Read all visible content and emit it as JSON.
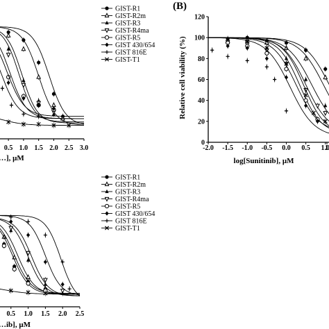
{
  "panels": [
    {
      "id": "A",
      "letter": "",
      "xlabel": "…], μM",
      "ylabel": "",
      "xlim": [
        -0.1,
        3.0
      ],
      "ylim": [
        0,
        120
      ],
      "x_ticks": [
        "0.5",
        "1.0",
        "1.5",
        "2.0",
        "2.5",
        "3.0"
      ],
      "y_ticks": [],
      "legend": [
        "GIST-R1",
        "GIST-R2m",
        "GIST-R3",
        "GIST-R4ma",
        "GIST-R5",
        "GIST 430/654",
        "GIST 816E",
        "GIST-T1"
      ]
    },
    {
      "id": "B",
      "letter": "(B)",
      "xlabel": "log[Sunitinib], μM",
      "ylabel": "Relative cell viability (%)",
      "xlim": [
        -2.0,
        1.2
      ],
      "ylim": [
        0,
        120
      ],
      "x_ticks": [
        "-2.0",
        "-1.5",
        "-1.0",
        "-0.5",
        "0.0",
        "0.5",
        "1.0",
        "1."
      ],
      "y_ticks": [
        "0",
        "20",
        "40",
        "60",
        "80",
        "100",
        "120"
      ],
      "legend": []
    },
    {
      "id": "C",
      "letter": "",
      "xlabel": "…ib], μM",
      "ylabel": "",
      "xlim": [
        -0.1,
        2.5
      ],
      "ylim": [
        0,
        120
      ],
      "x_ticks": [
        "0.5",
        "1.0",
        "1.5",
        "2.0",
        "2.5"
      ],
      "y_ticks": [],
      "legend": [
        "GIST-R1",
        "GIST-R2m",
        "GIST-R3",
        "GIST-R4ma",
        "GIST-R5",
        "GIST 430/654",
        "GIST 816E",
        "GIST-T1"
      ]
    }
  ],
  "chart_data": [
    {
      "type": "scatter",
      "title": "",
      "xlabel": "…], μM",
      "ylabel": "",
      "xlim": [
        -0.1,
        3.0
      ],
      "ylim": [
        0,
        120
      ],
      "grid": false,
      "legend_position": "right",
      "series": [
        {
          "name": "GIST-R1",
          "marker": "circle-filled",
          "x": [
            0.0,
            0.5,
            1.0,
            1.5,
            2.0,
            2.3
          ],
          "y": [
            97,
            95,
            88,
            68,
            40,
            20
          ],
          "curve": {
            "top": 100,
            "bottom": 12,
            "ec50": 1.85,
            "hill": 1.6
          }
        },
        {
          "name": "GIST-R2m",
          "marker": "triangle-open",
          "x": [
            0.0,
            0.5,
            1.0,
            1.5,
            2.0,
            2.3
          ],
          "y": [
            96,
            92,
            80,
            55,
            30,
            18
          ],
          "curve": {
            "top": 100,
            "bottom": 12,
            "ec50": 1.5,
            "hill": 1.6
          }
        },
        {
          "name": "GIST-R3",
          "marker": "triangle-filled",
          "x": [
            0.0,
            0.5,
            1.0,
            1.5,
            2.0
          ],
          "y": [
            95,
            80,
            52,
            34,
            22
          ],
          "curve": {
            "top": 100,
            "bottom": 14,
            "ec50": 0.95,
            "hill": 1.7
          }
        },
        {
          "name": "GIST-R4ma",
          "marker": "triangle-down-open",
          "x": [
            0.0,
            0.5,
            1.0,
            1.5,
            2.0
          ],
          "y": [
            94,
            75,
            48,
            32,
            24
          ],
          "curve": {
            "top": 100,
            "bottom": 15,
            "ec50": 0.85,
            "hill": 1.7
          }
        },
        {
          "name": "GIST-R5",
          "marker": "circle-open",
          "x": [
            0.0,
            0.5,
            1.0,
            1.5,
            2.0
          ],
          "y": [
            90,
            55,
            38,
            30,
            26
          ],
          "curve": {
            "top": 100,
            "bottom": 18,
            "ec50": 0.55,
            "hill": 1.6
          }
        },
        {
          "name": "GIST 430/654",
          "marker": "diamond-filled",
          "x": [
            0.0,
            0.5,
            1.0,
            1.5,
            2.0
          ],
          "y": [
            85,
            50,
            36,
            30,
            27
          ],
          "curve": {
            "top": 100,
            "bottom": 20,
            "ec50": 0.45,
            "hill": 1.5
          }
        },
        {
          "name": "GIST 816E",
          "marker": "plus",
          "x": [
            0.0,
            0.3,
            0.6,
            1.0,
            1.5
          ],
          "y": [
            70,
            45,
            30,
            22,
            20
          ],
          "curve": {
            "top": 100,
            "bottom": 18,
            "ec50": 0.25,
            "hill": 1.5
          }
        },
        {
          "name": "GIST-T1",
          "marker": "cross",
          "x": [
            0.0,
            0.5,
            1.0,
            1.5,
            2.0,
            2.5
          ],
          "y": [
            18,
            15,
            13,
            13,
            12,
            12
          ],
          "curve": {
            "top": 22,
            "bottom": 12,
            "ec50": 0.3,
            "hill": 1.2
          }
        }
      ]
    },
    {
      "type": "scatter",
      "title": "",
      "xlabel": "log[Sunitinib], μM",
      "ylabel": "Relative cell viability (%)",
      "xlim": [
        -2.0,
        1.2
      ],
      "ylim": [
        0,
        120
      ],
      "grid": false,
      "series": [
        {
          "name": "",
          "marker": "circle-filled",
          "x": [
            -1.5,
            -1.0,
            -0.5,
            0.0,
            0.5,
            1.0
          ],
          "y": [
            99,
            100,
            97,
            95,
            88,
            70
          ],
          "curve": {
            "top": 100,
            "bottom": 10,
            "ec50": 1.1,
            "hill": 1.4
          }
        },
        {
          "name": "",
          "marker": "triangle-open",
          "x": [
            -1.5,
            -1.0,
            -0.5,
            0.0,
            0.5,
            1.0
          ],
          "y": [
            97,
            98,
            95,
            90,
            80,
            62
          ],
          "curve": {
            "top": 100,
            "bottom": 10,
            "ec50": 0.95,
            "hill": 1.4
          }
        },
        {
          "name": "",
          "marker": "triangle-filled",
          "x": [
            -1.5,
            -1.0,
            -0.5,
            0.0,
            0.5,
            1.0
          ],
          "y": [
            98,
            96,
            90,
            80,
            60,
            35
          ],
          "curve": {
            "top": 100,
            "bottom": 10,
            "ec50": 0.65,
            "hill": 1.4
          }
        },
        {
          "name": "",
          "marker": "triangle-down-open",
          "x": [
            -1.5,
            -1.0,
            -0.5,
            0.0,
            0.5,
            0.8,
            1.0
          ],
          "y": [
            96,
            94,
            88,
            75,
            50,
            35,
            28
          ],
          "curve": {
            "top": 100,
            "bottom": 10,
            "ec50": 0.5,
            "hill": 1.5
          }
        },
        {
          "name": "",
          "marker": "circle-open",
          "x": [
            -1.5,
            -1.0,
            -0.5,
            0.0,
            0.5,
            0.8
          ],
          "y": [
            95,
            92,
            85,
            70,
            40,
            22
          ],
          "curve": {
            "top": 100,
            "bottom": 8,
            "ec50": 0.35,
            "hill": 1.6
          }
        },
        {
          "name": "",
          "marker": "diamond-filled",
          "x": [
            -1.5,
            -1.0,
            -0.5,
            0.0,
            0.5,
            0.8
          ],
          "y": [
            92,
            90,
            80,
            62,
            35,
            20
          ],
          "curve": {
            "top": 100,
            "bottom": 10,
            "ec50": 0.25,
            "hill": 1.5
          }
        },
        {
          "name": "",
          "marker": "plus",
          "x": [
            -1.9,
            -1.5,
            -1.0,
            -0.5,
            -0.3,
            0.0
          ],
          "y": [
            88,
            82,
            78,
            72,
            60,
            30
          ],
          "curve": {
            "top": 100,
            "bottom": 5,
            "ec50": 0.1,
            "hill": 1.4
          }
        },
        {
          "name": "",
          "marker": "cross",
          "x": [
            -1.0,
            -0.5,
            0.0,
            0.5,
            0.7,
            1.0
          ],
          "y": [
            96,
            90,
            75,
            45,
            28,
            20
          ],
          "curve": {
            "top": 100,
            "bottom": 8,
            "ec50": 0.45,
            "hill": 1.6
          }
        }
      ]
    },
    {
      "type": "scatter",
      "title": "",
      "xlabel": "…ib], μM",
      "ylabel": "",
      "xlim": [
        -0.1,
        2.5
      ],
      "ylim": [
        0,
        120
      ],
      "grid": false,
      "legend_position": "right",
      "series": [
        {
          "name": "GIST-R1",
          "marker": "circle-filled",
          "x": [
            0.0,
            0.3,
            0.6,
            1.0,
            1.5
          ],
          "y": [
            92,
            70,
            45,
            28,
            20
          ],
          "curve": {
            "top": 100,
            "bottom": 15,
            "ec50": 0.6,
            "hill": 1.8
          }
        },
        {
          "name": "GIST-R2m",
          "marker": "triangle-open",
          "x": [
            0.0,
            0.3,
            0.6,
            1.0,
            1.5
          ],
          "y": [
            95,
            78,
            55,
            33,
            20
          ],
          "curve": {
            "top": 100,
            "bottom": 14,
            "ec50": 0.7,
            "hill": 1.8
          }
        },
        {
          "name": "GIST-R3",
          "marker": "triangle-filled",
          "x": [
            0.0,
            0.5,
            1.0,
            1.5,
            2.0
          ],
          "y": [
            98,
            85,
            52,
            25,
            15
          ],
          "curve": {
            "top": 100,
            "bottom": 12,
            "ec50": 1.0,
            "hill": 1.8
          }
        },
        {
          "name": "GIST-R4ma",
          "marker": "triangle-down-open",
          "x": [
            0.0,
            0.5,
            1.0,
            1.5,
            2.0
          ],
          "y": [
            98,
            88,
            60,
            30,
            18
          ],
          "curve": {
            "top": 100,
            "bottom": 12,
            "ec50": 1.1,
            "hill": 1.8
          }
        },
        {
          "name": "GIST-R5",
          "marker": "circle-open",
          "x": [
            0.0,
            0.3,
            0.6,
            1.0,
            1.5
          ],
          "y": [
            90,
            68,
            42,
            26,
            18
          ],
          "curve": {
            "top": 100,
            "bottom": 14,
            "ec50": 0.55,
            "hill": 1.8
          }
        },
        {
          "name": "GIST 430/654",
          "marker": "diamond-filled",
          "x": [
            0.0,
            0.5,
            1.0,
            1.5,
            2.0
          ],
          "y": [
            100,
            95,
            80,
            50,
            25
          ],
          "curve": {
            "top": 102,
            "bottom": 12,
            "ec50": 1.5,
            "hill": 1.9
          }
        },
        {
          "name": "GIST 816E",
          "marker": "plus",
          "x": [
            0.0,
            0.5,
            1.0,
            1.5,
            2.0,
            2.2
          ],
          "y": [
            100,
            100,
            95,
            80,
            50,
            20
          ],
          "curve": {
            "top": 102,
            "bottom": 5,
            "ec50": 1.95,
            "hill": 2.0
          }
        },
        {
          "name": "GIST-T1",
          "marker": "cross",
          "x": [
            0.0,
            0.5,
            1.0,
            1.5
          ],
          "y": [
            22,
            18,
            16,
            15
          ],
          "curve": {
            "top": 24,
            "bottom": 14,
            "ec50": 0.3,
            "hill": 1.2
          }
        }
      ]
    }
  ]
}
